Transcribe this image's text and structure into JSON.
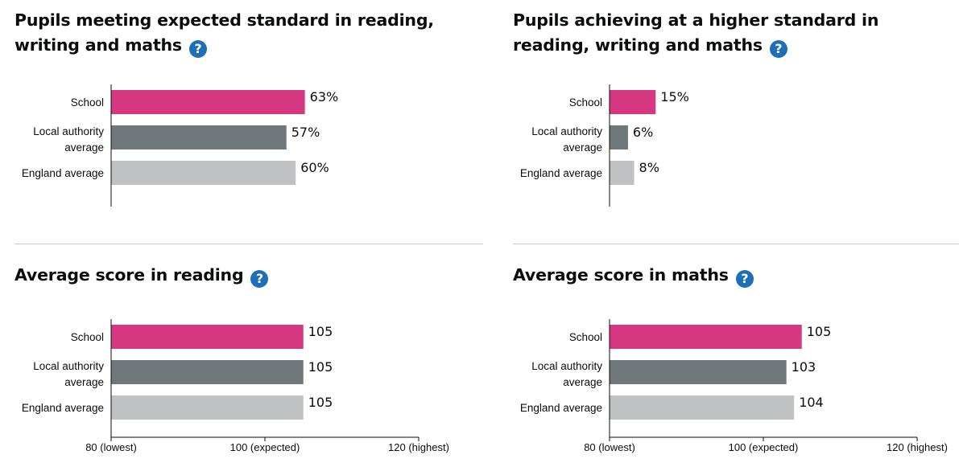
{
  "colors": {
    "school": "#d53880",
    "local_authority": "#6f777b",
    "england": "#bfc1c3",
    "axis": "#0b0c0c",
    "help_icon": "#1d70b8"
  },
  "help_icon_label": "?",
  "chart_data": [
    {
      "type": "bar",
      "title": "Pupils meeting expected standard in reading, writing and maths",
      "categories": [
        "School",
        "Local authority average",
        "England average"
      ],
      "category_lines": [
        [
          "School"
        ],
        [
          "Local authority",
          "average"
        ],
        [
          "England average"
        ]
      ],
      "values": [
        63,
        57,
        60
      ],
      "value_labels": [
        "63%",
        "57%",
        "60%"
      ],
      "xlim": [
        0,
        100
      ],
      "ticks": [],
      "colors": [
        "#d53880",
        "#6f777b",
        "#bfc1c3"
      ]
    },
    {
      "type": "bar",
      "title": "Pupils achieving at a higher standard in reading, writing and maths",
      "categories": [
        "School",
        "Local authority average",
        "England average"
      ],
      "category_lines": [
        [
          "School"
        ],
        [
          "Local authority",
          "average"
        ],
        [
          "England average"
        ]
      ],
      "values": [
        15,
        6,
        8
      ],
      "value_labels": [
        "15%",
        "6%",
        "8%"
      ],
      "xlim": [
        0,
        100
      ],
      "ticks": [],
      "colors": [
        "#d53880",
        "#6f777b",
        "#bfc1c3"
      ]
    },
    {
      "type": "bar",
      "title": "Average score in reading",
      "categories": [
        "School",
        "Local authority average",
        "England average"
      ],
      "category_lines": [
        [
          "School"
        ],
        [
          "Local authority",
          "average"
        ],
        [
          "England average"
        ]
      ],
      "values": [
        105,
        105,
        105
      ],
      "value_labels": [
        "105",
        "105",
        "105"
      ],
      "xlim": [
        80,
        120
      ],
      "ticks": [
        {
          "value": 80,
          "label": "80 (lowest)"
        },
        {
          "value": 100,
          "label": "100 (expected)"
        },
        {
          "value": 120,
          "label": "120 (highest)"
        }
      ],
      "colors": [
        "#d53880",
        "#6f777b",
        "#bfc1c3"
      ]
    },
    {
      "type": "bar",
      "title": "Average score in maths",
      "categories": [
        "School",
        "Local authority average",
        "England average"
      ],
      "category_lines": [
        [
          "School"
        ],
        [
          "Local authority",
          "average"
        ],
        [
          "England average"
        ]
      ],
      "values": [
        105,
        103,
        104
      ],
      "value_labels": [
        "105",
        "103",
        "104"
      ],
      "xlim": [
        80,
        120
      ],
      "ticks": [
        {
          "value": 80,
          "label": "80 (lowest)"
        },
        {
          "value": 100,
          "label": "100 (expected)"
        },
        {
          "value": 120,
          "label": "120 (highest)"
        }
      ],
      "colors": [
        "#d53880",
        "#6f777b",
        "#bfc1c3"
      ]
    }
  ]
}
